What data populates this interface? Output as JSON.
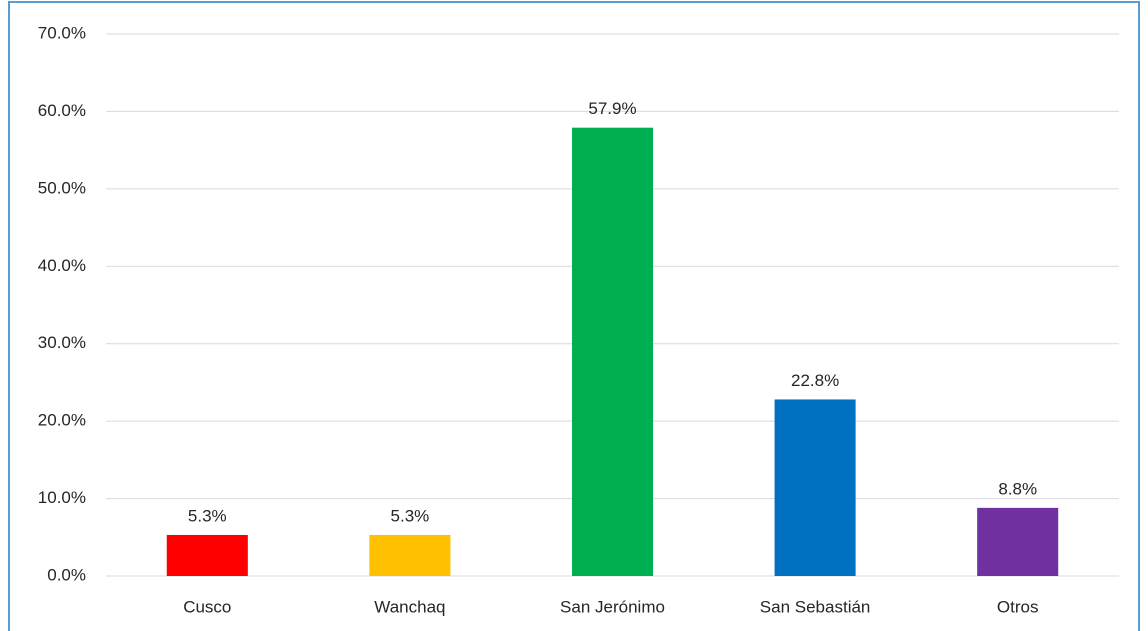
{
  "chart_data": {
    "type": "bar",
    "categories": [
      "Cusco",
      "Wanchaq",
      "San Jerónimo",
      "San Sebastián",
      "Otros"
    ],
    "values": [
      5.3,
      5.3,
      57.9,
      22.8,
      8.8
    ],
    "value_labels": [
      "5.3%",
      "5.3%",
      "57.9%",
      "22.8%",
      "8.8%"
    ],
    "colors": [
      "#ff0000",
      "#ffc000",
      "#00b050",
      "#0070c0",
      "#7030a0"
    ],
    "ylim": [
      0,
      70
    ],
    "yticks": [
      {
        "value": 0,
        "label": "0.0%"
      },
      {
        "value": 10,
        "label": "10.0%"
      },
      {
        "value": 20,
        "label": "20.0%"
      },
      {
        "value": 30,
        "label": "30.0%"
      },
      {
        "value": 40,
        "label": "40.0%"
      },
      {
        "value": 50,
        "label": "50.0%"
      },
      {
        "value": 60,
        "label": "60.0%"
      },
      {
        "value": 70,
        "label": "70.0%"
      }
    ],
    "grid": true
  }
}
